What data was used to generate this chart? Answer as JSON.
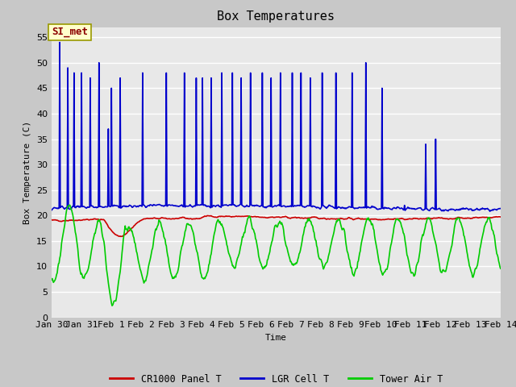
{
  "title": "Box Temperatures",
  "xlabel": "Time",
  "ylabel": "Box Temperature (C)",
  "ylim": [
    0,
    57
  ],
  "yticks": [
    0,
    5,
    10,
    15,
    20,
    25,
    30,
    35,
    40,
    45,
    50,
    55
  ],
  "fig_bg_color": "#c8c8c8",
  "plot_bg_color": "#e8e8e8",
  "annotation_text": "SI_met",
  "annotation_color": "#8b0000",
  "annotation_bg": "#ffffcc",
  "annotation_edge": "#999900",
  "line_colors": {
    "cr1000": "#cc0000",
    "lgr": "#0000cc",
    "tower": "#00cc00"
  },
  "line_widths": {
    "cr1000": 1.2,
    "lgr": 1.2,
    "tower": 1.2
  },
  "legend_labels": [
    "CR1000 Panel T",
    "LGR Cell T",
    "Tower Air T"
  ],
  "x_tick_labels": [
    "Jan 30",
    "Jan 31",
    "Feb 1",
    "Feb 2",
    "Feb 3",
    "Feb 4",
    "Feb 5",
    "Feb 6",
    "Feb 7",
    "Feb 8",
    "Feb 9",
    "Feb 10",
    "Feb 11",
    "Feb 12",
    "Feb 13",
    "Feb 14"
  ],
  "font_family": "monospace",
  "title_fontsize": 11,
  "label_fontsize": 8,
  "tick_fontsize": 8
}
